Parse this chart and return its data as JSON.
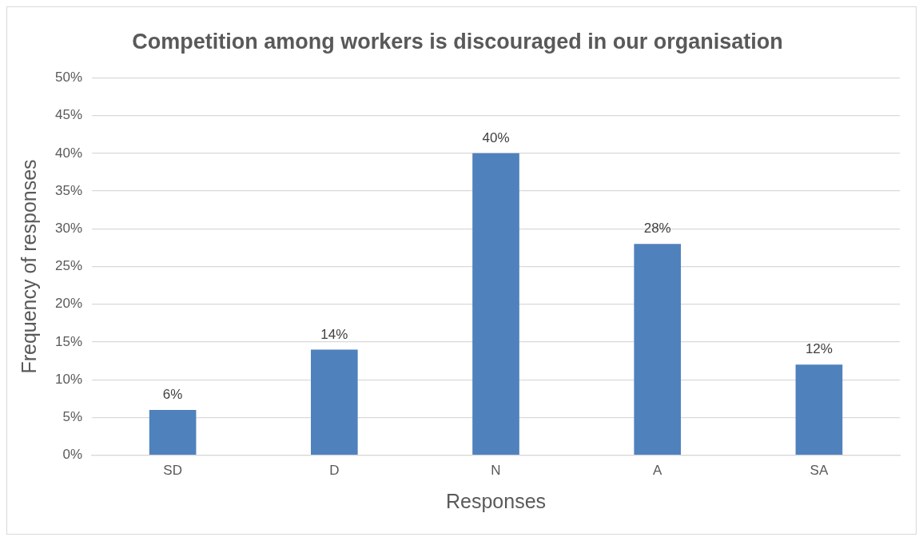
{
  "chart_data": {
    "type": "bar",
    "title": "Competition among workers is discouraged in our organisation",
    "xlabel": "Responses",
    "ylabel": "Frequency of responses",
    "categories": [
      "SD",
      "D",
      "N",
      "A",
      "SA"
    ],
    "values": [
      6,
      14,
      40,
      28,
      12
    ],
    "value_labels": [
      "6%",
      "14%",
      "40%",
      "28%",
      "12%"
    ],
    "color": "#4f81bd",
    "ylim": [
      0,
      50
    ],
    "yticks": [
      {
        "value": 0,
        "label": "0%"
      },
      {
        "value": 5,
        "label": "5%"
      },
      {
        "value": 10,
        "label": "10%"
      },
      {
        "value": 15,
        "label": "15%"
      },
      {
        "value": 20,
        "label": "20%"
      },
      {
        "value": 25,
        "label": "25%"
      },
      {
        "value": 30,
        "label": "30%"
      },
      {
        "value": 35,
        "label": "35%"
      },
      {
        "value": 40,
        "label": "40%"
      },
      {
        "value": 45,
        "label": "45%"
      },
      {
        "value": 50,
        "label": "50%"
      }
    ],
    "grid": "y",
    "legend": false
  }
}
